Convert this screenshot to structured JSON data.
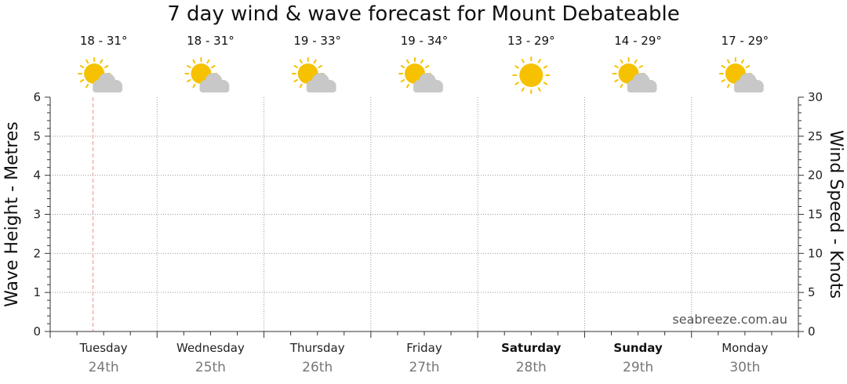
{
  "chart_data": {
    "type": "line",
    "title": "7 day wind & wave forecast for Mount Debateable",
    "y_left": {
      "label": "Wave Height - Metres",
      "ylim": [
        0,
        6
      ],
      "ticks": [
        "0",
        "1",
        "2",
        "3",
        "4",
        "5",
        "6"
      ]
    },
    "y_right": {
      "label": "Wind Speed - Knots",
      "ylim": [
        0,
        30
      ],
      "ticks": [
        "0",
        "5",
        "10",
        "15",
        "20",
        "25",
        "30"
      ]
    },
    "grid": true,
    "days": [
      {
        "name": "Tuesday",
        "date": "24th",
        "temp": "18 - 31°",
        "icon": "sun-cloud-icon",
        "bold": false
      },
      {
        "name": "Wednesday",
        "date": "25th",
        "temp": "18 - 31°",
        "icon": "sun-cloud-icon",
        "bold": false
      },
      {
        "name": "Thursday",
        "date": "26th",
        "temp": "19 - 33°",
        "icon": "sun-cloud-icon",
        "bold": false
      },
      {
        "name": "Friday",
        "date": "27th",
        "temp": "19 - 34°",
        "icon": "sun-cloud-icon",
        "bold": false
      },
      {
        "name": "Saturday",
        "date": "28th",
        "temp": "13 - 29°",
        "icon": "sun-icon",
        "bold": true
      },
      {
        "name": "Sunday",
        "date": "29th",
        "temp": "14 - 29°",
        "icon": "sun-cloud-icon",
        "bold": true
      },
      {
        "name": "Monday",
        "date": "30th",
        "temp": "17 - 29°",
        "icon": "sun-cloud-icon",
        "bold": false
      }
    ],
    "current_time_marker": {
      "day_index": 0,
      "fraction_of_day": 0.4
    },
    "series": [],
    "colors": {
      "grid": "#999999",
      "marker": "#f0a0a0",
      "sun": "#f6c200",
      "cloud": "#c8c8c8",
      "date_text": "#777777"
    }
  },
  "watermark": "seabreeze.com.au"
}
